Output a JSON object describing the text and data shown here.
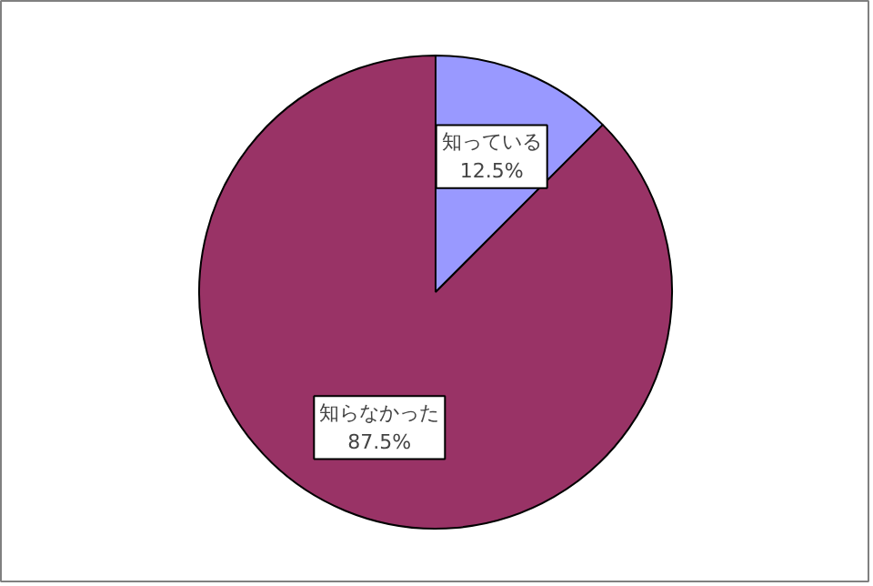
{
  "chart_data": {
    "type": "pie",
    "categories": [
      "知っている",
      "知らなかった"
    ],
    "values": [
      12.5,
      87.5
    ],
    "colors": [
      "#9999ff",
      "#993366"
    ],
    "value_labels": [
      "12.5%",
      "87.5%"
    ]
  }
}
